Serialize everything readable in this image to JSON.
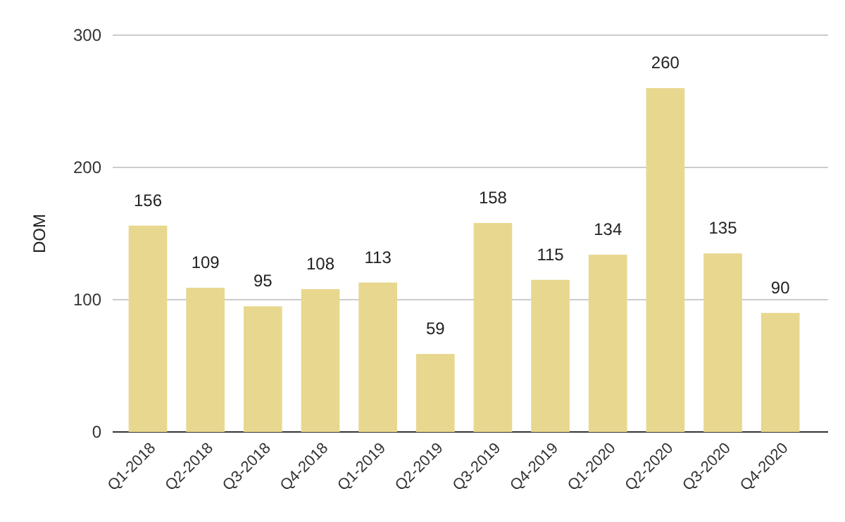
{
  "chart_data": {
    "type": "bar",
    "ylabel": "DOM",
    "categories": [
      "Q1-2018",
      "Q2-2018",
      "Q3-2018",
      "Q4-2018",
      "Q1-2019",
      "Q2-2019",
      "Q3-2019",
      "Q4-2019",
      "Q1-2020",
      "Q2-2020",
      "Q3-2020",
      "Q4-2020"
    ],
    "values": [
      156,
      109,
      95,
      108,
      113,
      59,
      158,
      115,
      134,
      260,
      135,
      90
    ],
    "color": "#e8d88f",
    "ylim": [
      0,
      300
    ],
    "yticks": [
      0,
      100,
      200,
      300
    ],
    "grid": "y",
    "data_labels": true
  }
}
